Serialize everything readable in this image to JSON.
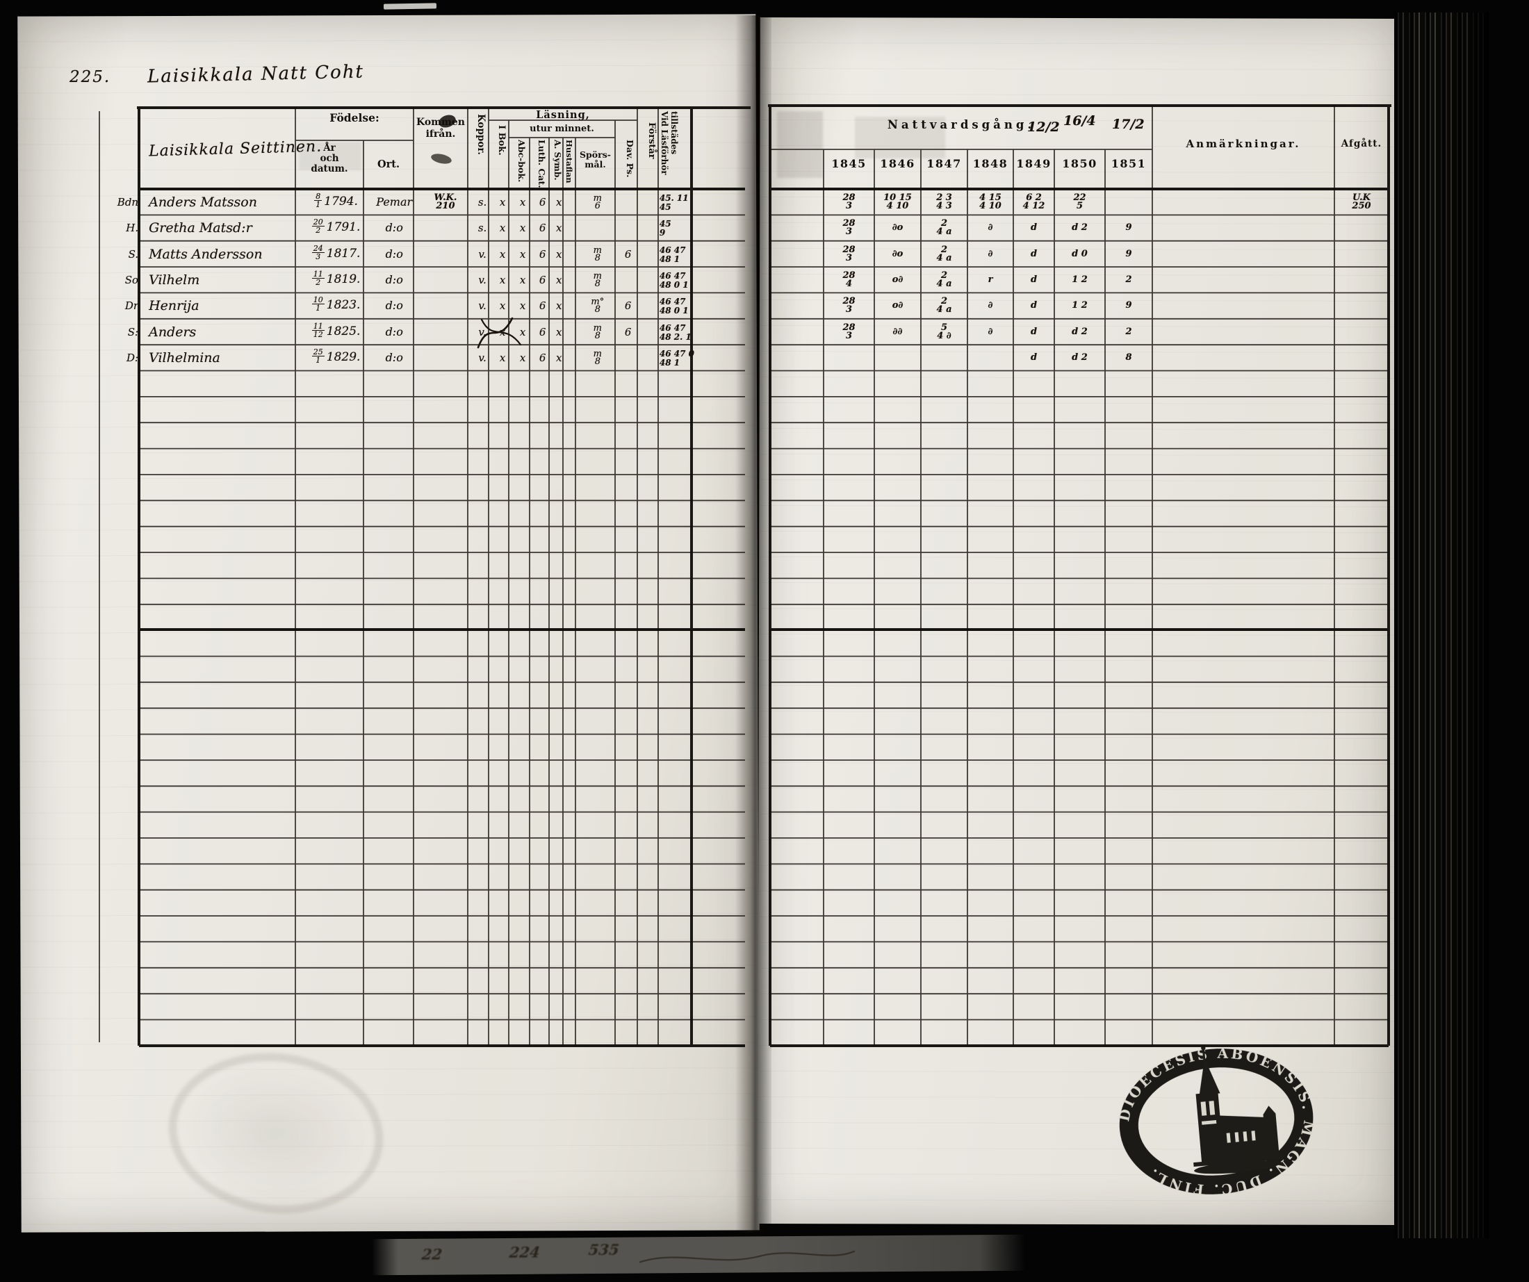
{
  "page": {
    "number": "225.",
    "title": "Laisikkala Natt Coht"
  },
  "left_table": {
    "household": "Laisikkala Seittinen.",
    "headers": {
      "fodelse": "Födelse:",
      "ar_och_datum": "År\noch\ndatum.",
      "ort": "Ort.",
      "kommen_ifran": "Kommen\nifrån.",
      "koppor": "Koppor.",
      "lasning": "Läsning,",
      "utur_minnet": "utur minnet.",
      "i_bok": "I Bok.",
      "abc_bok": "Abc-bok.",
      "luth_cat": "Luth. Cat.",
      "a_symb": "A. Symb.",
      "hustaflan": "Hustaflan",
      "sporsmal": "Spörs-\nmål.",
      "dav_ps": "Dav. Ps.",
      "forstar": "Förstår",
      "vid_lasforhor_1": "Vid Läsförhör",
      "vid_lasforhor_2": "tillstädes"
    },
    "rows": [
      {
        "rel": "Bdn",
        "name": "Anders Matsson",
        "bft": "8",
        "bfb": "1",
        "by": "1794.",
        "ort": "Pemar",
        "kommen": "W.K.\n210",
        "koppor": "s.",
        "ibok": "x",
        "abc": "x",
        "luth": "6",
        "symb": "x",
        "hust": "",
        "spors": "m\n6",
        "dav": "",
        "forstar": "",
        "vidlas": "45. 11\n45"
      },
      {
        "rel": "H.",
        "name": "Gretha Matsd:r",
        "bft": "20",
        "bfb": "2",
        "by": "1791.",
        "ort": "d:o",
        "kommen": "",
        "koppor": "s.",
        "ibok": "x",
        "abc": "x",
        "luth": "6",
        "symb": "x",
        "hust": "",
        "spors": "",
        "dav": "",
        "forstar": "",
        "vidlas": "45\n9"
      },
      {
        "rel": "S.",
        "name": "Matts Andersson",
        "bft": "24",
        "bfb": "3",
        "by": "1817.",
        "ort": "d:o",
        "kommen": "",
        "koppor": "v.",
        "ibok": "x",
        "abc": "x",
        "luth": "6",
        "symb": "x",
        "hust": "",
        "spors": "m\n8",
        "dav": "6",
        "forstar": "",
        "vidlas": "46 47\n48 1"
      },
      {
        "rel": "So",
        "name": "Vilhelm",
        "bft": "11",
        "bfb": "2",
        "by": "1819.",
        "ort": "d:o",
        "kommen": "",
        "koppor": "v.",
        "ibok": "x",
        "abc": "x",
        "luth": "6",
        "symb": "x",
        "hust": "",
        "spors": "m\n8",
        "dav": "",
        "forstar": "",
        "vidlas": "46 47\n48 0 1"
      },
      {
        "rel": "Dr",
        "name": "Henrija",
        "bft": "10",
        "bfb": "1",
        "by": "1823.",
        "ort": "d:o",
        "kommen": "",
        "koppor": "v.",
        "ibok": "x",
        "abc": "x",
        "luth": "6",
        "symb": "x",
        "hust": "",
        "spors": "m°\n8",
        "dav": "6",
        "forstar": "",
        "vidlas": "46 47\n48 0 1"
      },
      {
        "rel": "S:",
        "name": "Anders",
        "bft": "11",
        "bfb": "12",
        "by": "1825.",
        "ort": "d:o",
        "kommen": "",
        "koppor": "v.",
        "ibok": "x",
        "abc": "x",
        "luth": "6",
        "symb": "x",
        "hust": "",
        "spors": "m\n8",
        "dav": "6",
        "forstar": "",
        "vidlas": "46 47\n48 2. 1"
      },
      {
        "rel": "D:",
        "name": "Vilhelmina",
        "bft": "25",
        "bfb": "1",
        "by": "1829.",
        "ort": "d:o",
        "kommen": "",
        "koppor": "v.",
        "ibok": "x",
        "abc": "x",
        "luth": "6",
        "symb": "x",
        "hust": "",
        "spors": "m\n8",
        "dav": "",
        "forstar": "",
        "vidlas": "46 47 0\n48 1"
      }
    ]
  },
  "right_table": {
    "title": "Nattvardsgång.",
    "hw_dates": [
      "12/2",
      "16/4",
      "17/2"
    ],
    "years": [
      "1845",
      "1846",
      "1847",
      "1848",
      "1849",
      "1850",
      "1851"
    ],
    "anmarkningar": "Anmärkningar.",
    "afgatt": "Afgått.",
    "rows": [
      {
        "c1": "28\n3",
        "c2": "10 15\n4 10",
        "c3": "2 3\n4 3",
        "c4": "4 15\n4 10",
        "c5": "6 2\n4 12",
        "c6": "22\n5",
        "c7": "",
        "anm": "",
        "afg": "U.K\n250"
      },
      {
        "c1": "28\n3",
        "c2": "∂o",
        "c3": "2\n4 a",
        "c4": "∂",
        "c5": "d",
        "c6": "d 2",
        "c7": "9",
        "anm": "",
        "afg": ""
      },
      {
        "c1": "28\n3",
        "c2": "∂o",
        "c3": "2\n4 a",
        "c4": "∂",
        "c5": "d",
        "c6": "d 0",
        "c7": "9",
        "anm": "",
        "afg": ""
      },
      {
        "c1": "28\n4",
        "c2": "o∂",
        "c3": "2\n4 a",
        "c4": "r",
        "c5": "d",
        "c6": "1 2",
        "c7": "2",
        "anm": "",
        "afg": ""
      },
      {
        "c1": "28\n3",
        "c2": "o∂",
        "c3": "2\n4 a",
        "c4": "∂",
        "c5": "d",
        "c6": "1 2",
        "c7": "9",
        "anm": "",
        "afg": ""
      },
      {
        "c1": "28\n3",
        "c2": "∂∂",
        "c3": "5\n4 ∂",
        "c4": "∂",
        "c5": "d",
        "c6": "d 2",
        "c7": "2",
        "anm": "",
        "afg": ""
      },
      {
        "c1": "",
        "c2": "",
        "c3": "",
        "c4": "",
        "c5": "d",
        "c6": "d 2",
        "c7": "8",
        "anm": "",
        "afg": ""
      }
    ]
  },
  "stamp": {
    "ring_text": "DIOECESIS ABOENSIS. MAGN. DUC. FINL."
  },
  "film_strip": {
    "numbers": [
      "22",
      "224",
      "535"
    ]
  }
}
